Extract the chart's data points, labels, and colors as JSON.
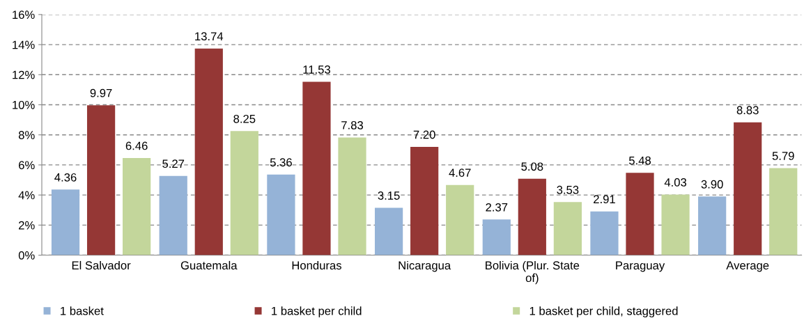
{
  "chart_data": {
    "type": "bar",
    "categories": [
      "El Salvador",
      "Guatemala",
      "Honduras",
      "Nicaragua",
      "Bolivia (Plur. State\nof)",
      "Paraguay",
      "Average"
    ],
    "series": [
      {
        "name": "1 basket",
        "color": "#95b3d7",
        "values": [
          4.36,
          5.27,
          5.36,
          3.15,
          2.37,
          2.91,
          3.9
        ]
      },
      {
        "name": "1 basket per child",
        "color": "#953735",
        "values": [
          9.97,
          13.74,
          11.53,
          7.2,
          5.08,
          5.48,
          8.83
        ]
      },
      {
        "name": "1 basket per child, staggered",
        "color": "#c3d69b",
        "values": [
          6.46,
          8.25,
          7.83,
          4.67,
          3.53,
          4.03,
          5.79
        ]
      }
    ],
    "value_labels": [
      [
        "4.36",
        "5.27",
        "5.36",
        "3.15",
        "2.37",
        "2.91",
        "3.90"
      ],
      [
        "9.97",
        "13.74",
        "11.53",
        "7.20",
        "5.08",
        "5.48",
        "8.83"
      ],
      [
        "6.46",
        "8.25",
        "7.83",
        "4.67",
        "3.53",
        "4.03",
        "5.79"
      ]
    ],
    "ylim": [
      0,
      16
    ],
    "yticks": [
      {
        "value": 0,
        "label": "0%"
      },
      {
        "value": 2,
        "label": "2%"
      },
      {
        "value": 4,
        "label": "4%"
      },
      {
        "value": 6,
        "label": "6%"
      },
      {
        "value": 8,
        "label": "8%"
      },
      {
        "value": 10,
        "label": "10%"
      },
      {
        "value": 12,
        "label": "12%"
      },
      {
        "value": 14,
        "label": "14%"
      },
      {
        "value": 16,
        "label": "16%"
      }
    ],
    "grid": "y",
    "legend": "bottom"
  }
}
